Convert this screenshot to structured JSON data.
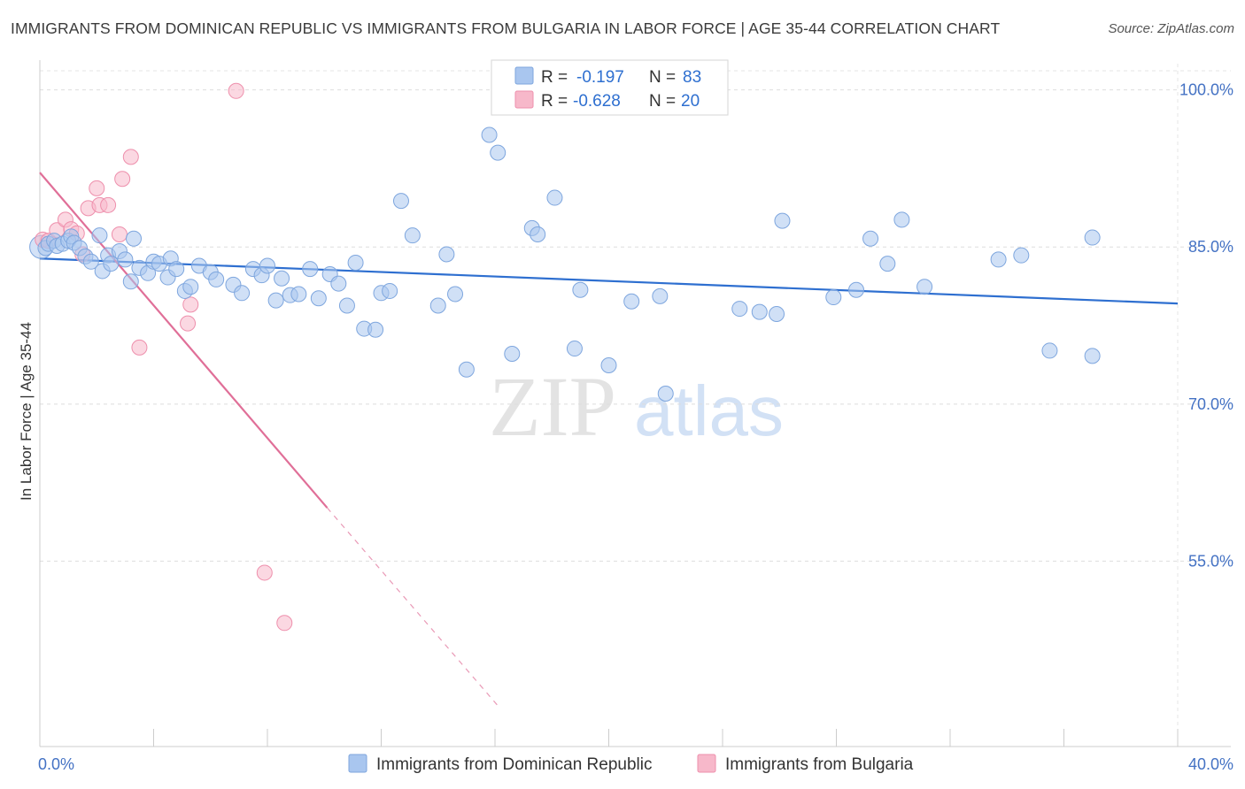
{
  "title": "IMMIGRANTS FROM DOMINICAN REPUBLIC VS IMMIGRANTS FROM BULGARIA IN LABOR FORCE | AGE 35-44 CORRELATION CHART",
  "source": "Source: ZipAtlas.com",
  "watermark": {
    "zip": "ZIP",
    "atlas": "atlas"
  },
  "legend": {
    "rows": [
      {
        "r_label": "R =",
        "r_value": "-0.197",
        "n_label": "N =",
        "n_value": "83",
        "color": "#a9c6ef"
      },
      {
        "r_label": "R =",
        "r_value": "-0.628",
        "n_label": "N =",
        "n_value": "20",
        "color": "#f7b8ca"
      }
    ]
  },
  "bottom_legend": [
    {
      "label": "Immigrants from Dominican Republic",
      "color": "#a9c6ef"
    },
    {
      "label": "Immigrants from Bulgaria",
      "color": "#f7b8ca"
    }
  ],
  "chart_data": {
    "type": "scatter",
    "title": "IMMIGRANTS FROM DOMINICAN REPUBLIC VS IMMIGRANTS FROM BULGARIA IN LABOR FORCE | AGE 35-44 CORRELATION CHART",
    "xlabel": "",
    "ylabel": "In Labor Force | Age 35-44",
    "xlim": [
      0,
      40
    ],
    "ylim": [
      37.3,
      102.5
    ],
    "x_tick_labels": [
      "0.0%",
      "40.0%"
    ],
    "y_ticks": [
      55,
      70,
      85,
      100
    ],
    "y_tick_labels": [
      "55.0%",
      "70.0%",
      "85.0%",
      "100.0%"
    ],
    "grid": true,
    "series": [
      {
        "name": "Immigrants from Dominican Republic",
        "color": "#a9c6ef",
        "edge": "#7ea6de",
        "trend": {
          "x": [
            0,
            40
          ],
          "y": [
            83.9,
            79.6
          ],
          "color": "#2e6fd0"
        },
        "points": [
          [
            0.2,
            84.9
          ],
          [
            0.3,
            85.3
          ],
          [
            0.5,
            85.6
          ],
          [
            0.6,
            85.1
          ],
          [
            0.8,
            85.3
          ],
          [
            1.0,
            85.6
          ],
          [
            1.1,
            86.0
          ],
          [
            1.2,
            85.4
          ],
          [
            1.4,
            84.9
          ],
          [
            1.6,
            84.1
          ],
          [
            1.8,
            83.6
          ],
          [
            2.1,
            86.1
          ],
          [
            2.2,
            82.7
          ],
          [
            2.4,
            84.2
          ],
          [
            2.5,
            83.4
          ],
          [
            2.8,
            84.6
          ],
          [
            3.0,
            83.8
          ],
          [
            3.2,
            81.7
          ],
          [
            3.3,
            85.8
          ],
          [
            3.5,
            83.0
          ],
          [
            3.8,
            82.5
          ],
          [
            4.0,
            83.6
          ],
          [
            4.2,
            83.4
          ],
          [
            4.5,
            82.1
          ],
          [
            4.6,
            83.9
          ],
          [
            4.8,
            82.9
          ],
          [
            5.1,
            80.8
          ],
          [
            5.3,
            81.2
          ],
          [
            5.6,
            83.2
          ],
          [
            6.0,
            82.6
          ],
          [
            6.2,
            81.9
          ],
          [
            6.8,
            81.4
          ],
          [
            7.1,
            80.6
          ],
          [
            7.5,
            82.9
          ],
          [
            7.8,
            82.3
          ],
          [
            8.0,
            83.2
          ],
          [
            8.3,
            79.9
          ],
          [
            8.5,
            82.0
          ],
          [
            8.8,
            80.4
          ],
          [
            9.1,
            80.5
          ],
          [
            9.5,
            82.9
          ],
          [
            9.8,
            80.1
          ],
          [
            10.2,
            82.4
          ],
          [
            10.5,
            81.5
          ],
          [
            10.8,
            79.4
          ],
          [
            11.1,
            83.5
          ],
          [
            11.4,
            77.2
          ],
          [
            11.8,
            77.1
          ],
          [
            12.0,
            80.6
          ],
          [
            12.3,
            80.8
          ],
          [
            12.7,
            89.4
          ],
          [
            13.1,
            86.1
          ],
          [
            14.0,
            79.4
          ],
          [
            14.3,
            84.3
          ],
          [
            14.6,
            80.5
          ],
          [
            15.0,
            73.3
          ],
          [
            15.8,
            95.7
          ],
          [
            16.1,
            94.0
          ],
          [
            16.6,
            74.8
          ],
          [
            17.3,
            86.8
          ],
          [
            17.5,
            86.2
          ],
          [
            18.1,
            89.7
          ],
          [
            18.8,
            75.3
          ],
          [
            19.0,
            80.9
          ],
          [
            20.0,
            73.7
          ],
          [
            20.8,
            79.8
          ],
          [
            21.8,
            80.3
          ],
          [
            22.0,
            71.0
          ],
          [
            24.6,
            79.1
          ],
          [
            25.3,
            78.8
          ],
          [
            25.9,
            78.6
          ],
          [
            26.1,
            87.5
          ],
          [
            27.9,
            80.2
          ],
          [
            28.7,
            80.9
          ],
          [
            29.2,
            85.8
          ],
          [
            29.8,
            83.4
          ],
          [
            30.3,
            87.6
          ],
          [
            31.1,
            81.2
          ],
          [
            33.7,
            83.8
          ],
          [
            34.5,
            84.2
          ],
          [
            35.5,
            75.1
          ],
          [
            37.0,
            74.6
          ],
          [
            37.0,
            85.9
          ]
        ]
      },
      {
        "name": "Immigrants from Bulgaria",
        "color": "#f7b8ca",
        "edge": "#ee8fac",
        "trend": {
          "x": [
            0,
            10.1
          ],
          "y": [
            92.1,
            60.1
          ],
          "dash_to": [
            16.1,
            41.2
          ],
          "color": "#e06f98"
        },
        "points": [
          [
            0.1,
            85.7
          ],
          [
            0.3,
            85.6
          ],
          [
            0.6,
            86.6
          ],
          [
            0.9,
            87.6
          ],
          [
            1.1,
            86.7
          ],
          [
            1.3,
            86.3
          ],
          [
            1.5,
            84.3
          ],
          [
            1.7,
            88.7
          ],
          [
            2.0,
            90.6
          ],
          [
            2.1,
            89.0
          ],
          [
            2.4,
            89.0
          ],
          [
            2.8,
            86.2
          ],
          [
            2.9,
            91.5
          ],
          [
            3.2,
            93.6
          ],
          [
            3.5,
            75.4
          ],
          [
            5.2,
            77.7
          ],
          [
            5.3,
            79.5
          ],
          [
            6.9,
            99.9
          ],
          [
            7.9,
            53.9
          ],
          [
            8.6,
            49.1
          ]
        ]
      }
    ]
  }
}
